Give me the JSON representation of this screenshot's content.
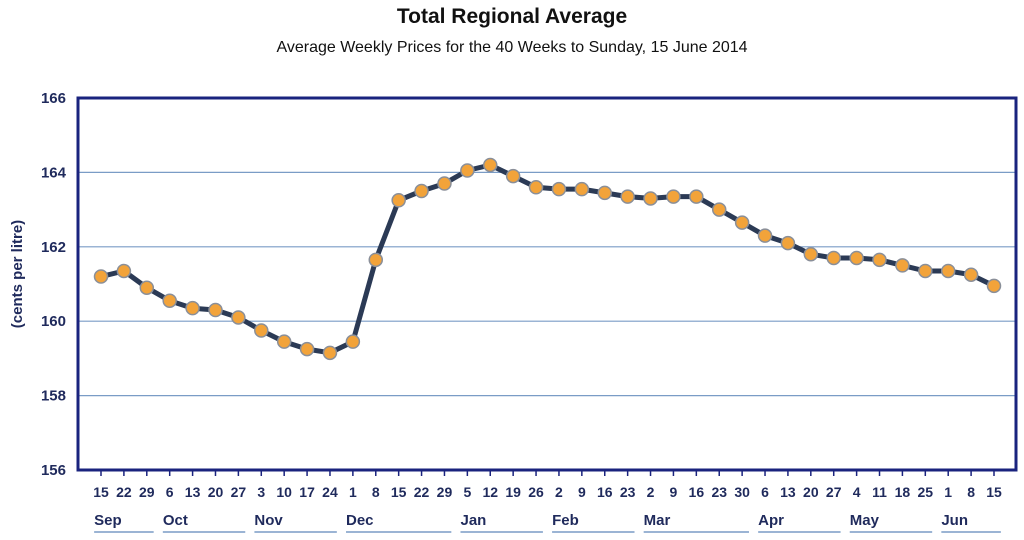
{
  "chart_data": {
    "type": "line",
    "title": "Total Regional Average",
    "subtitle": "Average Weekly Prices for the 40 Weeks to Sunday, 15 June 2014",
    "xlabel": "",
    "ylabel": "(cents per litre)",
    "ylim": [
      156,
      166
    ],
    "yticks": [
      156,
      158,
      160,
      162,
      164,
      166
    ],
    "grid": true,
    "x": [
      "15",
      "22",
      "29",
      "6",
      "13",
      "20",
      "27",
      "3",
      "10",
      "17",
      "24",
      "1",
      "8",
      "15",
      "22",
      "29",
      "5",
      "12",
      "19",
      "26",
      "2",
      "9",
      "16",
      "23",
      "2",
      "9",
      "16",
      "23",
      "30",
      "6",
      "13",
      "20",
      "27",
      "4",
      "11",
      "18",
      "25",
      "1",
      "8",
      "15"
    ],
    "months": [
      {
        "label": "Sep",
        "start": 0,
        "end": 2
      },
      {
        "label": "Oct",
        "start": 3,
        "end": 6
      },
      {
        "label": "Nov",
        "start": 7,
        "end": 10
      },
      {
        "label": "Dec",
        "start": 11,
        "end": 15
      },
      {
        "label": "Jan",
        "start": 16,
        "end": 19
      },
      {
        "label": "Feb",
        "start": 20,
        "end": 23
      },
      {
        "label": "Mar",
        "start": 24,
        "end": 28
      },
      {
        "label": "Apr",
        "start": 29,
        "end": 32
      },
      {
        "label": "May",
        "start": 33,
        "end": 36
      },
      {
        "label": "Jun",
        "start": 37,
        "end": 39
      }
    ],
    "series": [
      {
        "values": [
          161.2,
          161.35,
          160.9,
          160.55,
          160.35,
          160.3,
          160.1,
          159.75,
          159.45,
          159.25,
          159.15,
          159.45,
          161.65,
          163.25,
          163.5,
          163.7,
          164.05,
          164.2,
          163.9,
          163.6,
          163.55,
          163.55,
          163.45,
          163.35,
          163.3,
          163.35,
          163.35,
          163.0,
          162.65,
          162.3,
          162.1,
          161.8,
          161.7,
          161.7,
          161.65,
          161.5,
          161.35,
          161.35,
          161.25,
          160.95
        ]
      }
    ],
    "colors": {
      "line": "#2b3a55",
      "marker_fill": "#f2a33a",
      "marker_stroke": "#8a8f99",
      "axis": "#1a237e",
      "grid": "#7a9cc6",
      "text": "#1f2a5c"
    }
  }
}
